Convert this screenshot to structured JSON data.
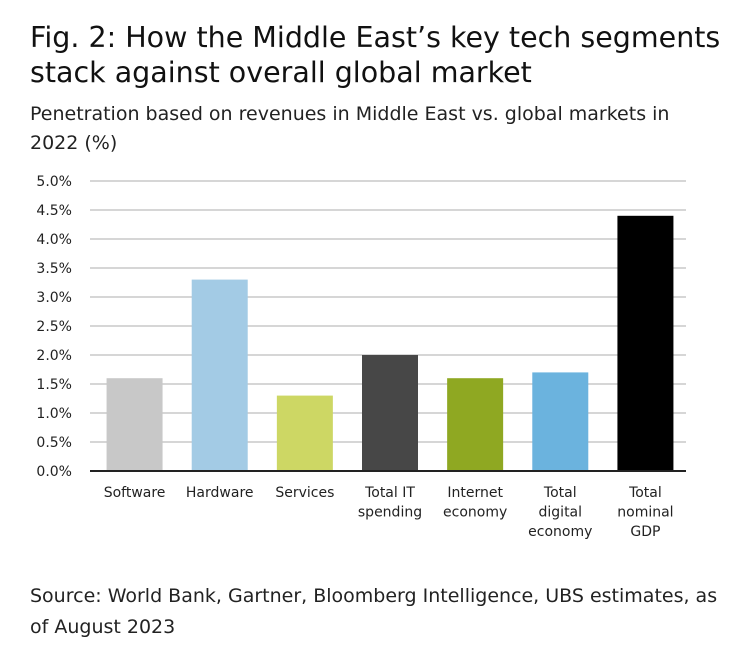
{
  "title": "Fig. 2: How the Middle East’s key tech segments stack against overall global market",
  "subtitle": "Penetration based on revenues in Middle East vs. global markets in 2022 (%)",
  "source": "Source: World Bank, Gartner, Bloomberg Intelligence, UBS estimates, as of August 2023",
  "chart_data": {
    "type": "bar",
    "title": "Fig. 2: How the Middle East’s key tech segments stack against overall global market",
    "subtitle": "Penetration based on revenues in Middle East vs. global markets in 2022 (%)",
    "xlabel": "",
    "ylabel": "",
    "ylim": [
      0,
      5.0
    ],
    "grid": true,
    "yticks": [
      "0.0%",
      "0.5%",
      "1.0%",
      "1.5%",
      "2.0%",
      "2.5%",
      "3.0%",
      "3.5%",
      "4.0%",
      "4.5%",
      "5.0%"
    ],
    "categories": [
      [
        "Software"
      ],
      [
        "Hardware"
      ],
      [
        "Services"
      ],
      [
        "Total IT",
        "spending"
      ],
      [
        "Internet",
        "economy"
      ],
      [
        "Total",
        "digital",
        "economy"
      ],
      [
        "Total",
        "nominal",
        "GDP"
      ]
    ],
    "values": [
      1.6,
      3.3,
      1.3,
      2.0,
      1.6,
      1.7,
      4.4
    ],
    "colors": [
      "#c8c8c8",
      "#a3cbe5",
      "#cdd764",
      "#474747",
      "#8fa822",
      "#6bb3de",
      "#000000"
    ]
  }
}
